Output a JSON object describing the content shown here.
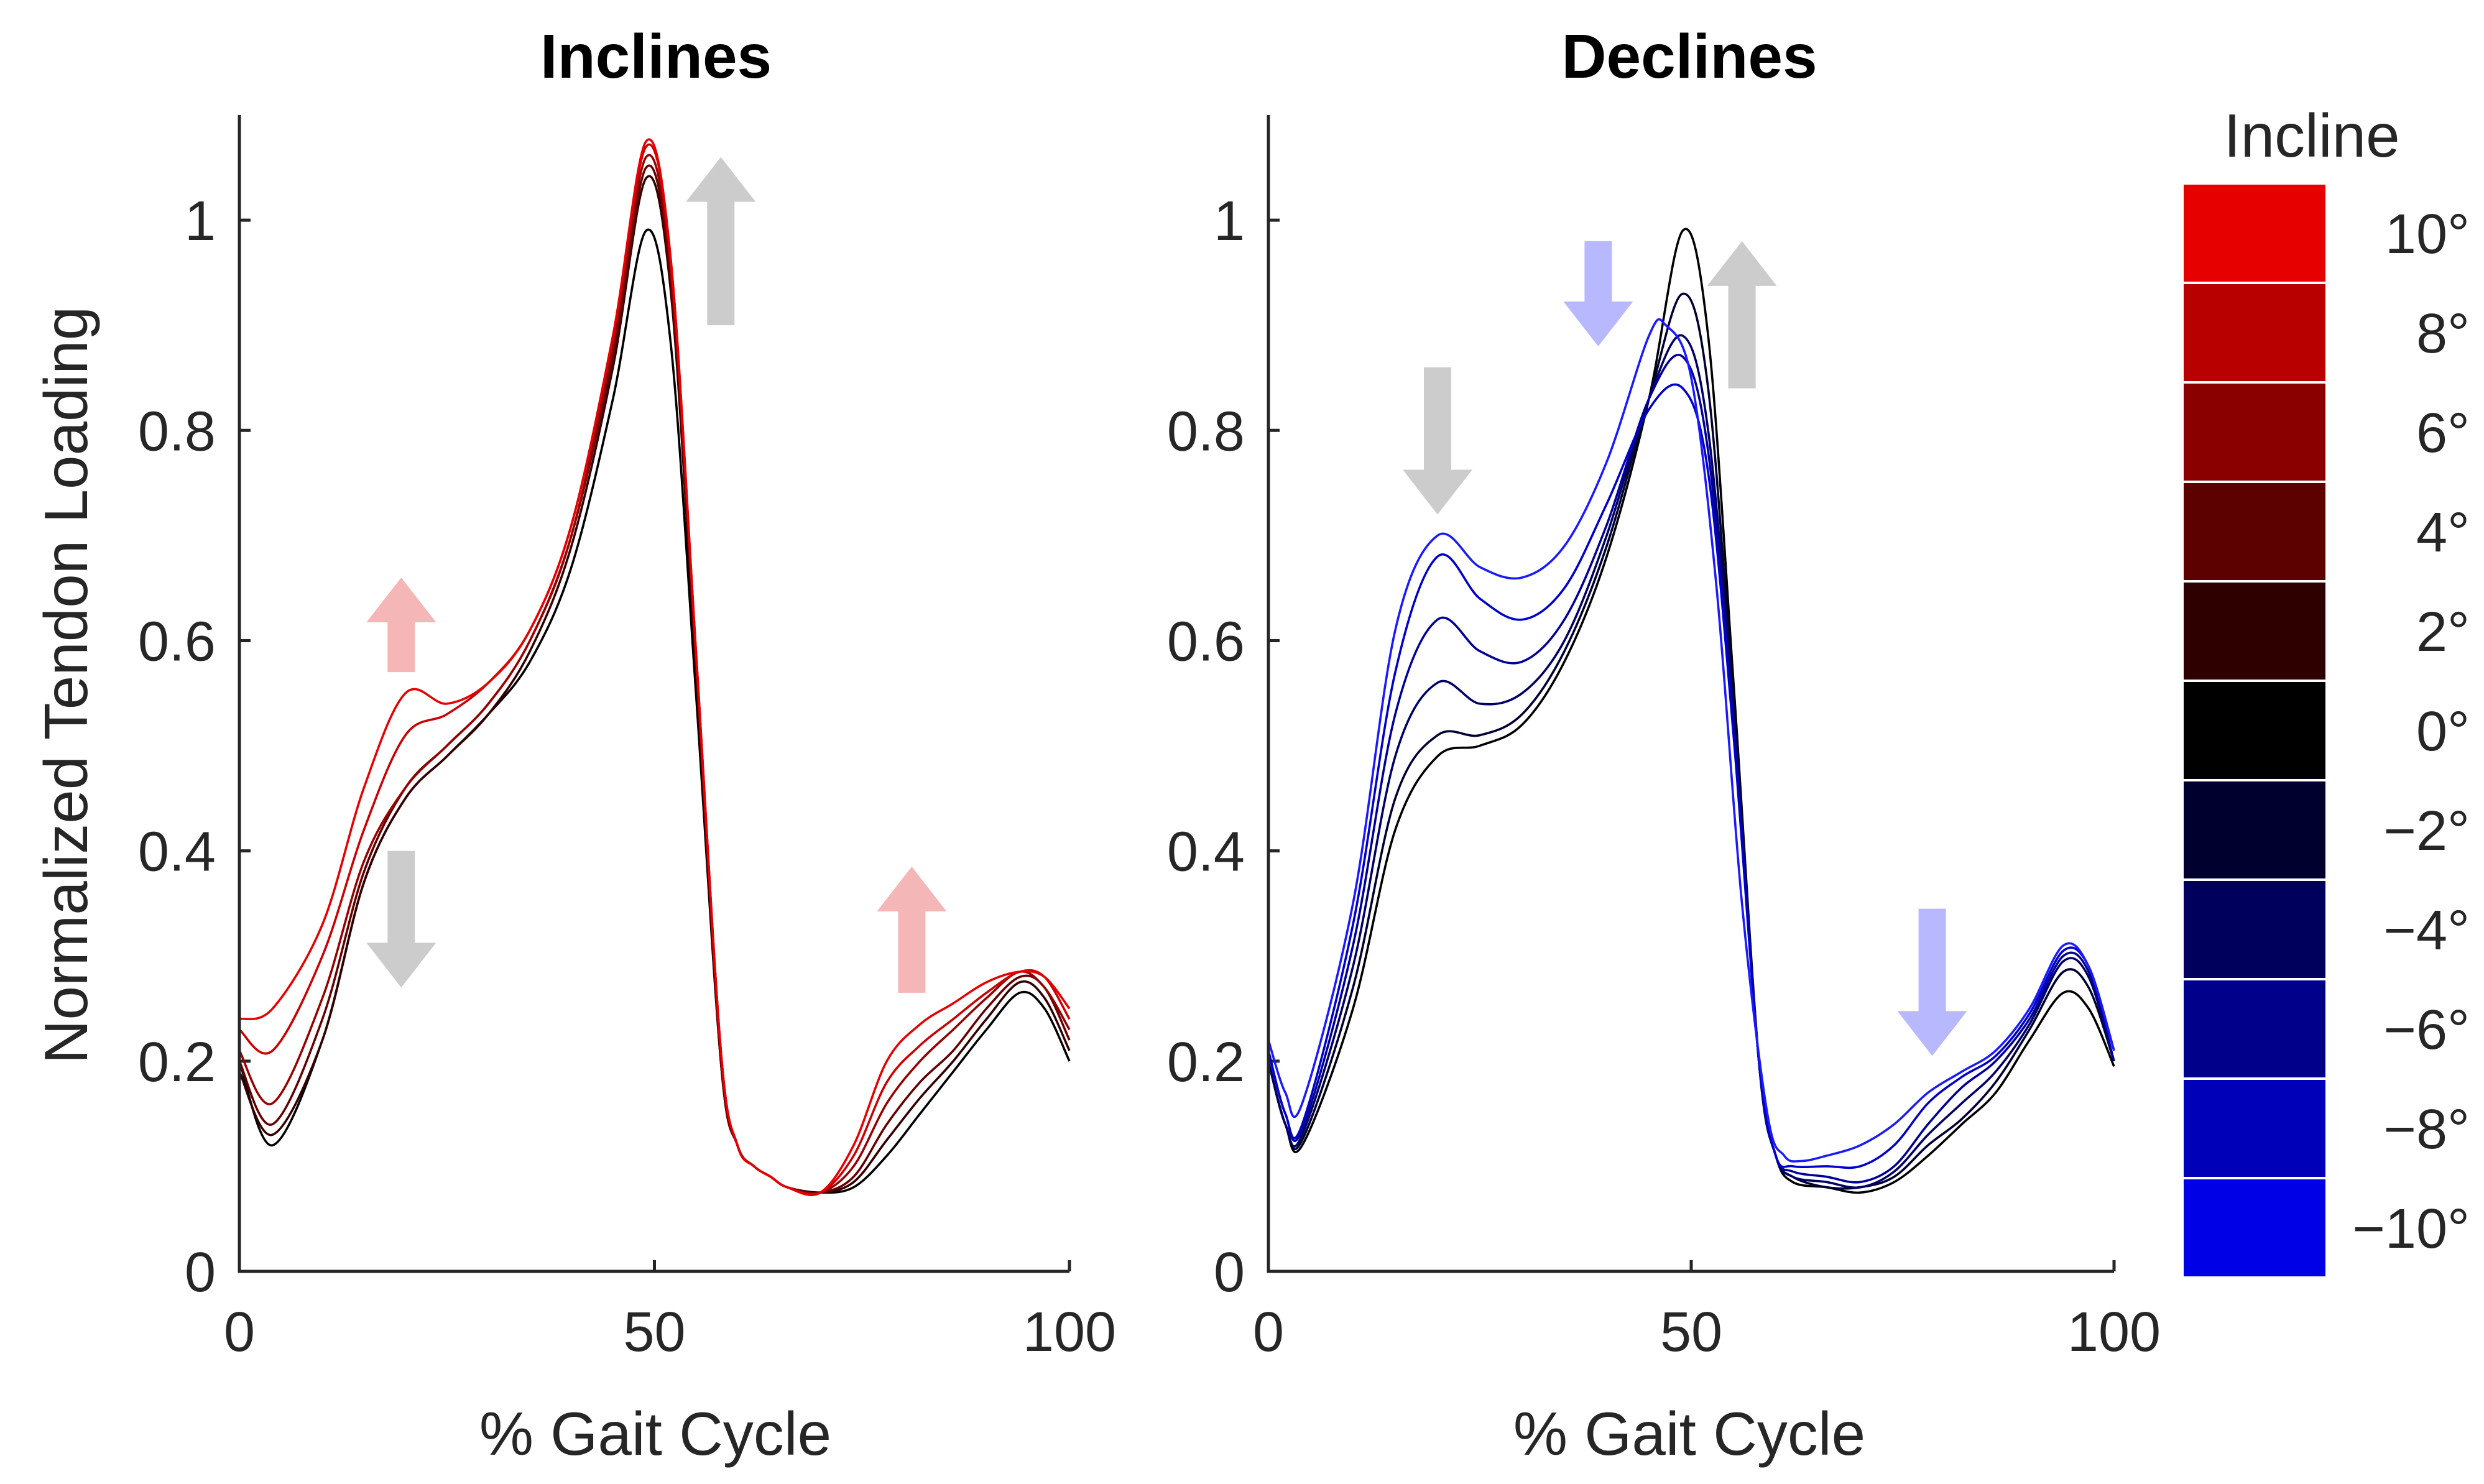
{
  "chart_data": [
    {
      "type": "line",
      "title": "Inclines",
      "xlabel": "% Gait Cycle",
      "ylabel": "Normalized Tendon Loading",
      "xlim": [
        0,
        100
      ],
      "ylim": [
        0,
        1.1
      ],
      "xticks": [
        "0",
        "50",
        "100"
      ],
      "yticks": [
        "0",
        "0.2",
        "0.4",
        "0.6",
        "0.8",
        "1"
      ],
      "series": [
        {
          "name": "0°",
          "color": "#000000",
          "x": [
            0,
            4,
            10,
            15,
            20,
            25,
            30,
            35,
            40,
            45,
            49,
            52,
            55,
            58,
            60,
            62,
            64,
            66,
            70,
            74,
            78,
            82,
            86,
            90,
            94,
            97,
            100
          ],
          "y": [
            0.2,
            0.12,
            0.22,
            0.37,
            0.45,
            0.49,
            0.53,
            0.58,
            0.67,
            0.83,
            0.99,
            0.88,
            0.55,
            0.2,
            0.12,
            0.1,
            0.09,
            0.08,
            0.075,
            0.08,
            0.11,
            0.15,
            0.19,
            0.23,
            0.265,
            0.25,
            0.2
          ]
        },
        {
          "name": "2°",
          "color": "#330000",
          "x": [
            0,
            4,
            10,
            15,
            20,
            25,
            30,
            35,
            40,
            45,
            49,
            52,
            55,
            58,
            60,
            62,
            64,
            66,
            70,
            74,
            78,
            82,
            86,
            90,
            94,
            97,
            100
          ],
          "y": [
            0.19,
            0.13,
            0.22,
            0.37,
            0.45,
            0.49,
            0.53,
            0.59,
            0.69,
            0.86,
            1.04,
            0.93,
            0.57,
            0.2,
            0.12,
            0.1,
            0.09,
            0.08,
            0.075,
            0.085,
            0.125,
            0.165,
            0.2,
            0.24,
            0.275,
            0.26,
            0.21
          ]
        },
        {
          "name": "4°",
          "color": "#660000",
          "x": [
            0,
            4,
            10,
            15,
            20,
            25,
            30,
            35,
            40,
            45,
            49,
            52,
            55,
            58,
            60,
            62,
            64,
            66,
            70,
            74,
            78,
            82,
            86,
            90,
            94,
            97,
            100
          ],
          "y": [
            0.2,
            0.14,
            0.24,
            0.38,
            0.46,
            0.5,
            0.54,
            0.6,
            0.7,
            0.87,
            1.05,
            0.94,
            0.58,
            0.2,
            0.12,
            0.1,
            0.09,
            0.08,
            0.075,
            0.09,
            0.14,
            0.18,
            0.21,
            0.25,
            0.28,
            0.27,
            0.22
          ]
        },
        {
          "name": "6°",
          "color": "#990000",
          "x": [
            0,
            4,
            10,
            15,
            20,
            25,
            30,
            35,
            40,
            45,
            49,
            52,
            55,
            58,
            60,
            62,
            64,
            66,
            70,
            74,
            78,
            82,
            86,
            90,
            94,
            97,
            100
          ],
          "y": [
            0.21,
            0.16,
            0.26,
            0.39,
            0.46,
            0.5,
            0.54,
            0.6,
            0.7,
            0.88,
            1.06,
            0.95,
            0.59,
            0.21,
            0.12,
            0.1,
            0.09,
            0.08,
            0.075,
            0.1,
            0.16,
            0.2,
            0.23,
            0.26,
            0.285,
            0.27,
            0.23
          ]
        },
        {
          "name": "8°",
          "color": "#cc0000",
          "x": [
            0,
            4,
            10,
            15,
            20,
            25,
            30,
            35,
            40,
            45,
            49,
            52,
            55,
            58,
            60,
            62,
            64,
            66,
            70,
            74,
            78,
            82,
            86,
            90,
            94,
            97,
            100
          ],
          "y": [
            0.23,
            0.21,
            0.3,
            0.42,
            0.51,
            0.53,
            0.56,
            0.61,
            0.71,
            0.89,
            1.07,
            0.96,
            0.59,
            0.21,
            0.12,
            0.1,
            0.09,
            0.08,
            0.075,
            0.11,
            0.18,
            0.215,
            0.24,
            0.265,
            0.285,
            0.28,
            0.24
          ]
        },
        {
          "name": "10°",
          "color": "#e60000",
          "x": [
            0,
            4,
            10,
            15,
            20,
            25,
            30,
            35,
            40,
            45,
            49,
            52,
            55,
            58,
            60,
            62,
            64,
            66,
            70,
            74,
            78,
            82,
            86,
            90,
            94,
            97,
            100
          ],
          "y": [
            0.24,
            0.25,
            0.33,
            0.46,
            0.55,
            0.54,
            0.56,
            0.61,
            0.71,
            0.89,
            1.075,
            0.96,
            0.59,
            0.21,
            0.12,
            0.1,
            0.09,
            0.08,
            0.075,
            0.12,
            0.2,
            0.235,
            0.255,
            0.275,
            0.285,
            0.28,
            0.25
          ]
        }
      ],
      "annotations": [
        {
          "type": "arrow",
          "direction": "up",
          "color": "#f4b6b6",
          "x": 19.5,
          "y_from": 0.57,
          "y_to": 0.66
        },
        {
          "type": "arrow",
          "direction": "down",
          "color": "#cccccc",
          "x": 19.5,
          "y_from": 0.4,
          "y_to": 0.27
        },
        {
          "type": "arrow",
          "direction": "up",
          "color": "#cccccc",
          "x": 58,
          "y_from": 0.9,
          "y_to": 1.06
        },
        {
          "type": "arrow",
          "direction": "up",
          "color": "#f4b6b6",
          "x": 81,
          "y_from": 0.265,
          "y_to": 0.385
        }
      ]
    },
    {
      "type": "line",
      "title": "Declines",
      "xlabel": "% Gait Cycle",
      "ylabel": "",
      "xlim": [
        0,
        100
      ],
      "ylim": [
        0,
        1.1
      ],
      "xticks": [
        "0",
        "50",
        "100"
      ],
      "yticks": [
        "0",
        "0.2",
        "0.4",
        "0.6",
        "0.8",
        "1"
      ],
      "series": [
        {
          "name": "0°",
          "color": "#000000",
          "x": [
            0,
            2,
            4,
            10,
            15,
            20,
            25,
            30,
            35,
            40,
            45,
            49,
            52,
            55,
            58,
            60,
            62,
            66,
            70,
            74,
            78,
            82,
            86,
            90,
            94,
            97,
            100
          ],
          "y": [
            0.2,
            0.14,
            0.12,
            0.25,
            0.42,
            0.49,
            0.5,
            0.52,
            0.58,
            0.68,
            0.83,
            0.99,
            0.89,
            0.56,
            0.2,
            0.11,
            0.085,
            0.08,
            0.075,
            0.085,
            0.11,
            0.14,
            0.17,
            0.22,
            0.265,
            0.25,
            0.195
          ]
        },
        {
          "name": "-2°",
          "color": "#000033",
          "x": [
            0,
            2,
            4,
            10,
            15,
            20,
            25,
            30,
            35,
            40,
            45,
            49,
            52,
            55,
            58,
            60,
            62,
            66,
            70,
            74,
            78,
            82,
            86,
            90,
            94,
            97,
            100
          ],
          "y": [
            0.2,
            0.14,
            0.125,
            0.27,
            0.45,
            0.51,
            0.51,
            0.53,
            0.59,
            0.69,
            0.83,
            0.93,
            0.84,
            0.54,
            0.2,
            0.11,
            0.09,
            0.08,
            0.08,
            0.09,
            0.12,
            0.145,
            0.18,
            0.23,
            0.285,
            0.27,
            0.2
          ]
        },
        {
          "name": "-4°",
          "color": "#000066",
          "x": [
            0,
            2,
            4,
            10,
            15,
            20,
            25,
            30,
            35,
            40,
            45,
            49,
            52,
            55,
            58,
            60,
            62,
            66,
            70,
            74,
            78,
            82,
            86,
            90,
            94,
            97,
            100
          ],
          "y": [
            0.2,
            0.14,
            0.13,
            0.29,
            0.49,
            0.56,
            0.54,
            0.55,
            0.6,
            0.7,
            0.83,
            0.89,
            0.8,
            0.53,
            0.2,
            0.11,
            0.09,
            0.085,
            0.08,
            0.095,
            0.13,
            0.16,
            0.19,
            0.235,
            0.295,
            0.28,
            0.2
          ]
        },
        {
          "name": "-6°",
          "color": "#000099",
          "x": [
            0,
            2,
            4,
            10,
            15,
            20,
            25,
            30,
            35,
            40,
            45,
            49,
            52,
            55,
            58,
            60,
            62,
            66,
            70,
            74,
            78,
            82,
            86,
            90,
            94,
            97,
            100
          ],
          "y": [
            0.21,
            0.15,
            0.135,
            0.31,
            0.53,
            0.62,
            0.59,
            0.58,
            0.62,
            0.71,
            0.83,
            0.87,
            0.78,
            0.52,
            0.2,
            0.11,
            0.095,
            0.09,
            0.085,
            0.1,
            0.14,
            0.175,
            0.2,
            0.24,
            0.3,
            0.285,
            0.2
          ]
        },
        {
          "name": "-8°",
          "color": "#0000cc",
          "x": [
            0,
            2,
            4,
            10,
            15,
            20,
            25,
            30,
            35,
            40,
            45,
            49,
            52,
            55,
            58,
            60,
            62,
            66,
            70,
            74,
            78,
            82,
            86,
            90,
            94,
            97,
            100
          ],
          "y": [
            0.21,
            0.15,
            0.14,
            0.33,
            0.57,
            0.68,
            0.64,
            0.62,
            0.65,
            0.73,
            0.82,
            0.84,
            0.76,
            0.51,
            0.2,
            0.11,
            0.1,
            0.1,
            0.1,
            0.12,
            0.16,
            0.185,
            0.205,
            0.245,
            0.305,
            0.29,
            0.21
          ]
        },
        {
          "name": "-10°",
          "color": "#1a1aff",
          "x": [
            0,
            2,
            4,
            10,
            15,
            20,
            25,
            30,
            35,
            40,
            45,
            47,
            50,
            53,
            56,
            59,
            61,
            63,
            66,
            70,
            74,
            78,
            82,
            86,
            90,
            94,
            97,
            100
          ],
          "y": [
            0.22,
            0.17,
            0.16,
            0.35,
            0.61,
            0.7,
            0.67,
            0.66,
            0.69,
            0.77,
            0.89,
            0.9,
            0.85,
            0.65,
            0.35,
            0.15,
            0.11,
            0.105,
            0.11,
            0.12,
            0.14,
            0.17,
            0.19,
            0.21,
            0.25,
            0.31,
            0.29,
            0.21
          ]
        }
      ],
      "annotations": [
        {
          "type": "arrow",
          "direction": "down",
          "color": "#cccccc",
          "x": 20,
          "y_from": 0.86,
          "y_to": 0.72
        },
        {
          "type": "arrow",
          "direction": "down",
          "color": "#b8b8ff",
          "x": 39,
          "y_from": 0.98,
          "y_to": 0.88
        },
        {
          "type": "arrow",
          "direction": "up",
          "color": "#cccccc",
          "x": 56,
          "y_from": 0.84,
          "y_to": 0.98
        },
        {
          "type": "arrow",
          "direction": "down",
          "color": "#b8b8ff",
          "x": 78.5,
          "y_from": 0.345,
          "y_to": 0.205
        }
      ]
    }
  ],
  "colorbar": {
    "title": "Incline",
    "entries": [
      {
        "label": "10°",
        "color": "#e60000"
      },
      {
        "label": "8°",
        "color": "#b80000"
      },
      {
        "label": "6°",
        "color": "#8a0000"
      },
      {
        "label": "4°",
        "color": "#5c0000"
      },
      {
        "label": "2°",
        "color": "#2e0000"
      },
      {
        "label": "0°",
        "color": "#000000"
      },
      {
        "label": "−2°",
        "color": "#00002e"
      },
      {
        "label": "−4°",
        "color": "#00005c"
      },
      {
        "label": "−6°",
        "color": "#00008a"
      },
      {
        "label": "−8°",
        "color": "#0000b8"
      },
      {
        "label": "−10°",
        "color": "#0000e6"
      }
    ]
  }
}
